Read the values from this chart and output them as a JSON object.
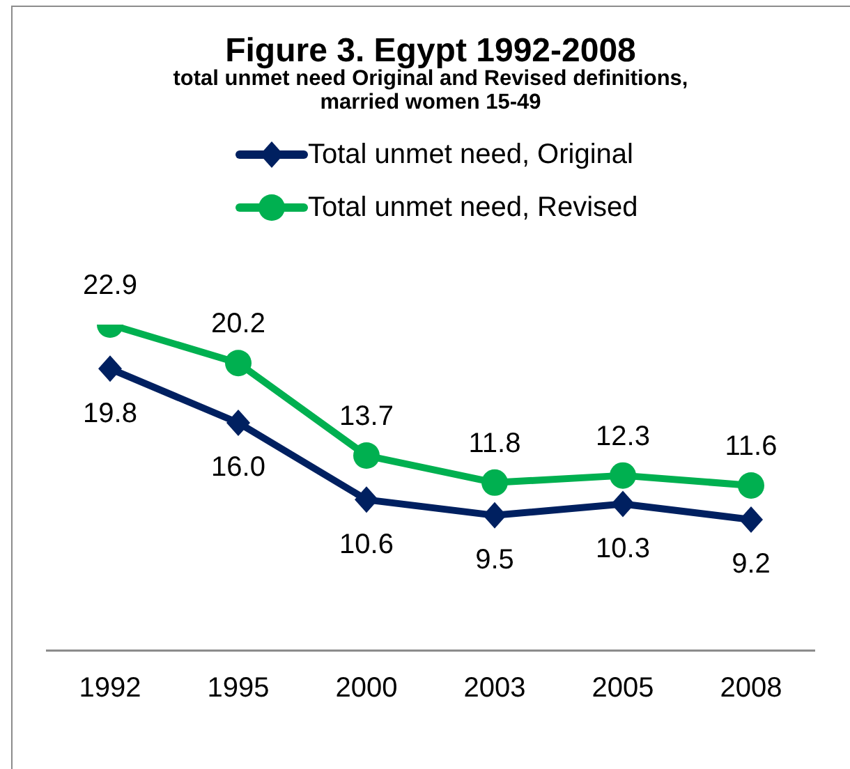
{
  "chart_data": {
    "type": "line",
    "title": "Figure 3. Egypt 1992-2008",
    "subtitle": "total unmet need Original and Revised definitions, married women 15-49",
    "categories": [
      "1992",
      "1995",
      "2000",
      "2003",
      "2005",
      "2008"
    ],
    "series": [
      {
        "name": "Total unmet need, Original",
        "color": "#002060",
        "marker": "diamond",
        "values": [
          19.8,
          16.0,
          10.6,
          9.5,
          10.3,
          9.2
        ],
        "value_labels": [
          "19.8",
          "16.0",
          "10.6",
          "9.5",
          "10.3",
          "9.2"
        ]
      },
      {
        "name": "Total unmet need, Revised",
        "color": "#00b050",
        "marker": "circle",
        "values": [
          22.9,
          20.2,
          13.7,
          11.8,
          12.3,
          11.6
        ],
        "value_labels": [
          "22.9",
          "20.2",
          "13.7",
          "11.8",
          "12.3",
          "11.6"
        ]
      }
    ],
    "legend": "top",
    "tick_labels": "x"
  }
}
